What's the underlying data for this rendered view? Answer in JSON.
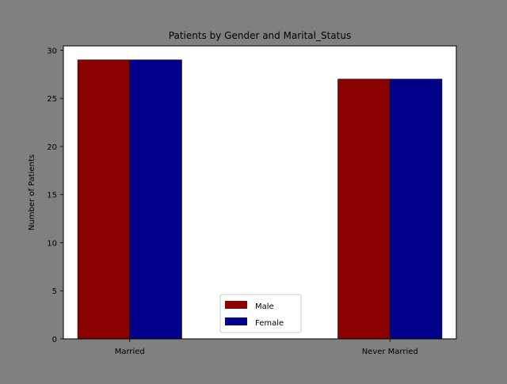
{
  "figure": {
    "background": "#808080",
    "plot_background": "#ffffff"
  },
  "chart_data": {
    "type": "bar",
    "title": "Patients by Gender and Marital_Status",
    "xlabel": "",
    "ylabel": "Number of Patients",
    "categories": [
      "Married",
      "Never Married"
    ],
    "series": [
      {
        "name": "Male",
        "values": [
          29,
          27
        ],
        "color": "#8b0000"
      },
      {
        "name": "Female",
        "values": [
          29,
          27
        ],
        "color": "#00008b"
      }
    ],
    "ylim": [
      0,
      30.45
    ],
    "yticks": [
      0,
      5,
      10,
      15,
      20,
      25,
      30
    ],
    "grid": false,
    "legend_position": "bottom-center"
  }
}
